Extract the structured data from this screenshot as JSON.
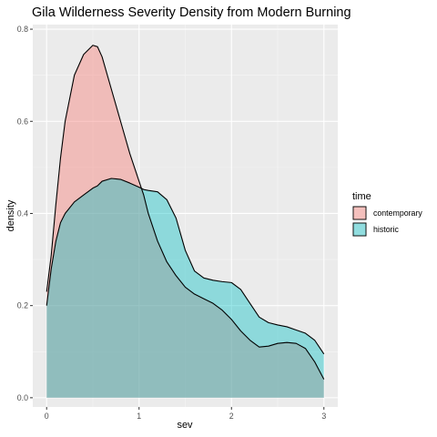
{
  "chart_data": {
    "type": "area",
    "title": "Gila Wilderness Severity Density from Modern Burning",
    "xlabel": "sev",
    "ylabel": "density",
    "xlim": [
      -0.15,
      3.15
    ],
    "ylim": [
      -0.02,
      0.81
    ],
    "xticks": [
      0,
      1,
      2,
      3
    ],
    "xtick_labels": [
      "0",
      "1",
      "2",
      "3"
    ],
    "yticks": [
      0.0,
      0.2,
      0.4,
      0.6,
      0.8
    ],
    "ytick_labels": [
      "0.0",
      "0.2",
      "0.4",
      "0.6",
      "0.8"
    ],
    "grid": true,
    "legend": {
      "title": "time",
      "position": "right"
    },
    "x": [
      0,
      0.05,
      0.1,
      0.15,
      0.2,
      0.3,
      0.4,
      0.5,
      0.55,
      0.6,
      0.7,
      0.8,
      0.9,
      1.0,
      1.05,
      1.1,
      1.2,
      1.3,
      1.4,
      1.5,
      1.6,
      1.7,
      1.8,
      1.9,
      2.0,
      2.1,
      2.2,
      2.3,
      2.4,
      2.5,
      2.6,
      2.7,
      2.8,
      2.9,
      3.0
    ],
    "series": [
      {
        "name": "contemporary",
        "color": "#F8766D",
        "values": [
          0.23,
          0.31,
          0.42,
          0.52,
          0.6,
          0.7,
          0.745,
          0.765,
          0.762,
          0.74,
          0.67,
          0.6,
          0.53,
          0.47,
          0.44,
          0.4,
          0.34,
          0.295,
          0.265,
          0.24,
          0.225,
          0.215,
          0.205,
          0.19,
          0.17,
          0.145,
          0.125,
          0.11,
          0.112,
          0.118,
          0.12,
          0.118,
          0.107,
          0.078,
          0.04
        ]
      },
      {
        "name": "historic",
        "color": "#00BFC4",
        "values": [
          0.2,
          0.28,
          0.34,
          0.38,
          0.4,
          0.425,
          0.44,
          0.455,
          0.46,
          0.47,
          0.476,
          0.474,
          0.466,
          0.457,
          0.452,
          0.45,
          0.447,
          0.43,
          0.39,
          0.32,
          0.275,
          0.26,
          0.255,
          0.252,
          0.25,
          0.235,
          0.205,
          0.175,
          0.163,
          0.158,
          0.154,
          0.147,
          0.14,
          0.125,
          0.095
        ]
      }
    ]
  }
}
